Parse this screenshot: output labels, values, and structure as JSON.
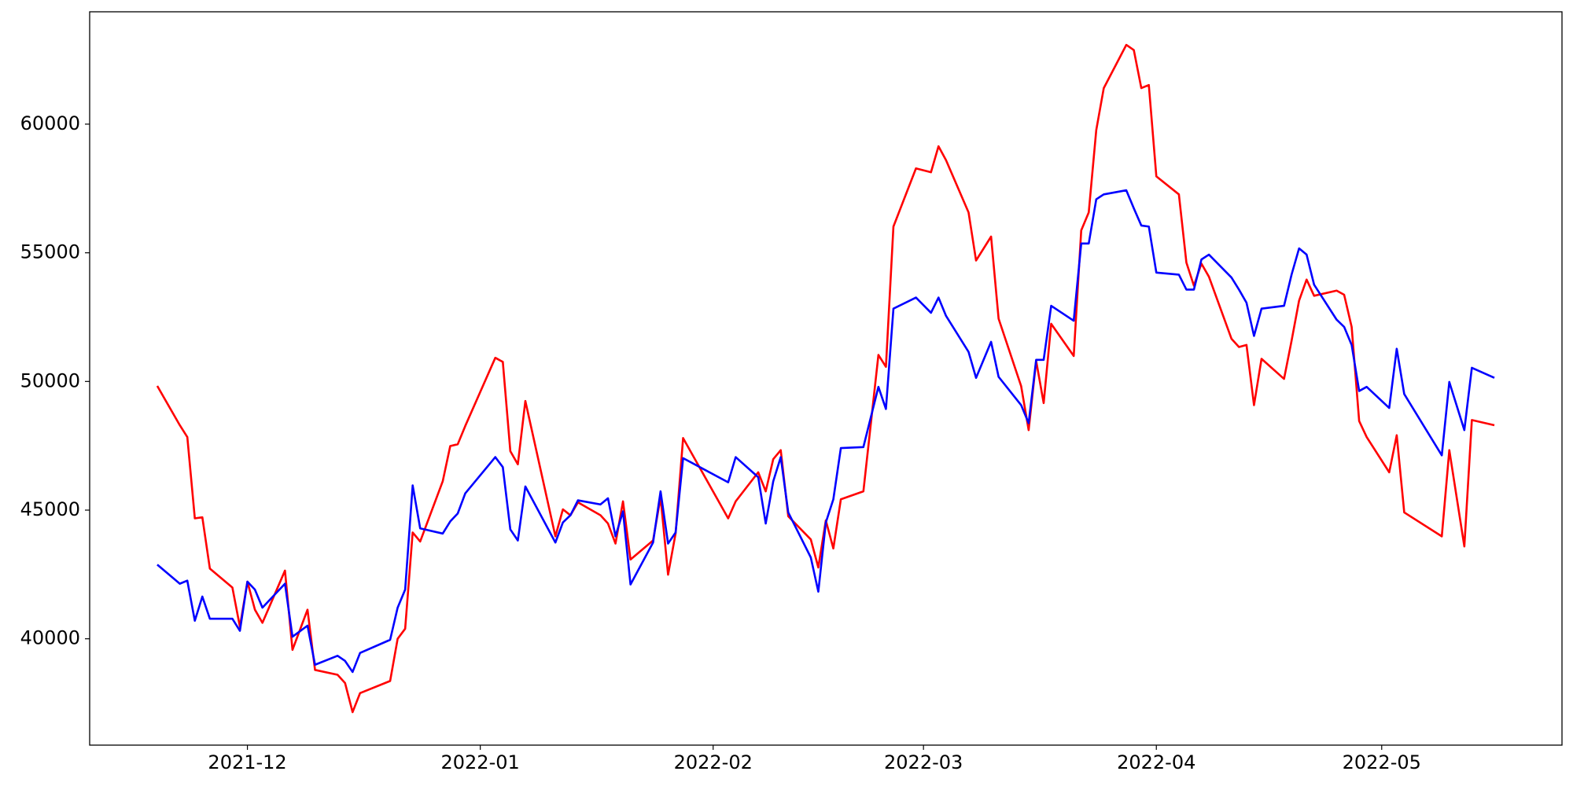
{
  "chart_data": {
    "type": "line",
    "x": [
      "2021-11-19",
      "2021-11-22",
      "2021-11-23",
      "2021-11-24",
      "2021-11-25",
      "2021-11-26",
      "2021-11-29",
      "2021-11-30",
      "2021-12-01",
      "2021-12-02",
      "2021-12-03",
      "2021-12-06",
      "2021-12-07",
      "2021-12-09",
      "2021-12-10",
      "2021-12-13",
      "2021-12-14",
      "2021-12-15",
      "2021-12-16",
      "2021-12-20",
      "2021-12-21",
      "2021-12-22",
      "2021-12-23",
      "2021-12-24",
      "2021-12-27",
      "2021-12-28",
      "2021-12-29",
      "2021-12-30",
      "2022-01-03",
      "2022-01-04",
      "2022-01-05",
      "2022-01-06",
      "2022-01-07",
      "2022-01-11",
      "2022-01-12",
      "2022-01-13",
      "2022-01-14",
      "2022-01-17",
      "2022-01-18",
      "2022-01-19",
      "2022-01-20",
      "2022-01-21",
      "2022-01-24",
      "2022-01-25",
      "2022-01-26",
      "2022-01-27",
      "2022-01-28",
      "2022-02-03",
      "2022-02-04",
      "2022-02-07",
      "2022-02-08",
      "2022-02-09",
      "2022-02-10",
      "2022-02-11",
      "2022-02-14",
      "2022-02-15",
      "2022-02-16",
      "2022-02-17",
      "2022-02-18",
      "2022-02-21",
      "2022-02-23",
      "2022-02-24",
      "2022-02-25",
      "2022-02-28",
      "2022-03-02",
      "2022-03-03",
      "2022-03-04",
      "2022-03-07",
      "2022-03-08",
      "2022-03-10",
      "2022-03-11",
      "2022-03-14",
      "2022-03-15",
      "2022-03-16",
      "2022-03-17",
      "2022-03-18",
      "2022-03-21",
      "2022-03-22",
      "2022-03-23",
      "2022-03-24",
      "2022-03-25",
      "2022-03-28",
      "2022-03-29",
      "2022-03-30",
      "2022-03-31",
      "2022-04-01",
      "2022-04-04",
      "2022-04-05",
      "2022-04-06",
      "2022-04-07",
      "2022-04-08",
      "2022-04-11",
      "2022-04-12",
      "2022-04-13",
      "2022-04-14",
      "2022-04-15",
      "2022-04-18",
      "2022-04-19",
      "2022-04-20",
      "2022-04-21",
      "2022-04-22",
      "2022-04-25",
      "2022-04-26",
      "2022-04-27",
      "2022-04-28",
      "2022-04-29",
      "2022-05-02",
      "2022-05-03",
      "2022-05-04",
      "2022-05-09",
      "2022-05-10",
      "2022-05-12",
      "2022-05-13",
      "2022-05-16"
    ],
    "series": [
      {
        "color": "red",
        "values": [
          49825,
          48300,
          47840,
          44680,
          44720,
          42730,
          41990,
          40470,
          42220,
          41130,
          40620,
          42650,
          39570,
          41130,
          38790,
          38600,
          38280,
          37150,
          37890,
          38360,
          40000,
          40390,
          44130,
          43780,
          46120,
          47490,
          47560,
          48270,
          50920,
          50760,
          47290,
          46780,
          49240,
          43980,
          45030,
          44800,
          45300,
          44800,
          44480,
          43700,
          45340,
          43080,
          43820,
          45500,
          42490,
          44090,
          47800,
          44680,
          45340,
          46470,
          45730,
          46980,
          47330,
          44760,
          43860,
          42770,
          44600,
          43510,
          45420,
          45730,
          51030,
          50570,
          56020,
          58280,
          58130,
          59140,
          58600,
          56570,
          54700,
          55630,
          52440,
          49820,
          48110,
          50800,
          49160,
          52240,
          50990,
          55870,
          56570,
          59770,
          61400,
          63080,
          62880,
          61400,
          61520,
          57970,
          57270,
          54620,
          53720,
          54580,
          54070,
          51660,
          51340,
          51420,
          49080,
          50880,
          50100,
          51580,
          53140,
          53960,
          53330,
          53530,
          53370,
          52120,
          48460,
          47840,
          46470,
          47910,
          44910,
          43980,
          47330,
          43590,
          48500,
          48300
        ]
      },
      {
        "color": "blue",
        "values": [
          42880,
          42140,
          42260,
          40700,
          41640,
          40780,
          40780,
          40310,
          42220,
          41910,
          41210,
          42140,
          40080,
          40510,
          38990,
          39340,
          39140,
          38710,
          39450,
          39960,
          41210,
          41910,
          45960,
          44290,
          44090,
          44560,
          44870,
          45650,
          47060,
          46670,
          44250,
          43820,
          45920,
          43740,
          44520,
          44800,
          45380,
          45220,
          45460,
          43980,
          44950,
          42110,
          43740,
          45730,
          43700,
          44130,
          47020,
          46080,
          47060,
          46280,
          44480,
          46120,
          47060,
          44910,
          43160,
          41830,
          44520,
          45420,
          47410,
          47450,
          49790,
          48930,
          52830,
          53260,
          52670,
          53260,
          52550,
          51150,
          50140,
          51540,
          50180,
          49080,
          48380,
          50840,
          50840,
          52940,
          52360,
          55360,
          55360,
          57080,
          57270,
          57430,
          56730,
          56060,
          56020,
          54230,
          54150,
          53570,
          53570,
          54740,
          54930,
          54040,
          53570,
          53060,
          51770,
          52830,
          52940,
          54150,
          55170,
          54930,
          53760,
          52400,
          52120,
          51420,
          49630,
          49790,
          48970,
          51270,
          49510,
          47130,
          49980,
          48110,
          50530,
          50140
        ]
      }
    ],
    "xlim": [
      "2021-11-10",
      "2022-05-25"
    ],
    "xticks": [
      {
        "value": "2021-12-01",
        "label": "2021-12"
      },
      {
        "value": "2022-01-01",
        "label": "2022-01"
      },
      {
        "value": "2022-02-01",
        "label": "2022-02"
      },
      {
        "value": "2022-03-01",
        "label": "2022-03"
      },
      {
        "value": "2022-04-01",
        "label": "2022-04"
      },
      {
        "value": "2022-05-01",
        "label": "2022-05"
      }
    ],
    "ylim": [
      35867,
      64366
    ],
    "yticks": [
      40000,
      45000,
      50000,
      55000,
      60000
    ],
    "grid": false
  }
}
